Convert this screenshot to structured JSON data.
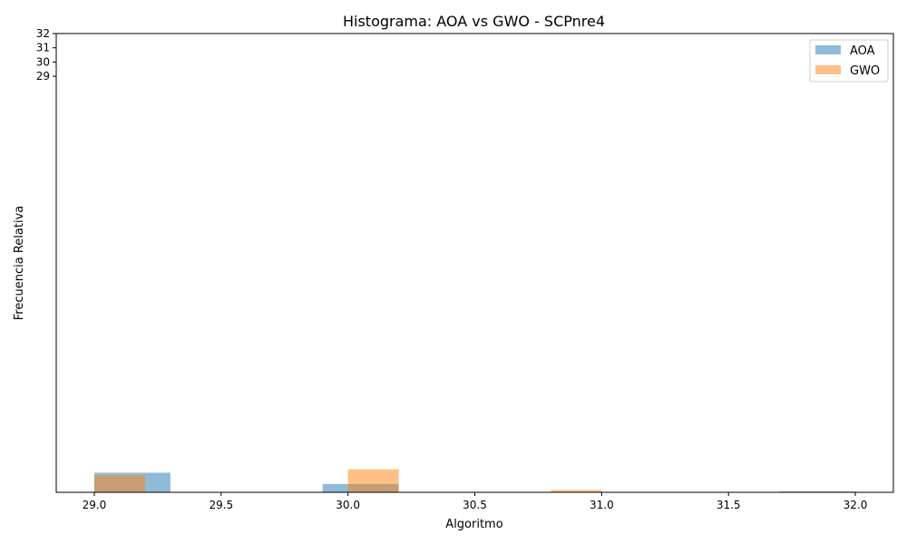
{
  "chart_data": {
    "type": "bar",
    "title": "Histograma: AOA vs GWO - SCPnre4",
    "xlabel": "Algoritmo",
    "ylabel": "Frecuencia Relativa",
    "xlim": [
      28.85,
      32.15
    ],
    "x_ticks": [
      "29.0",
      "29.5",
      "30.0",
      "30.5",
      "31.0",
      "31.5",
      "32.0"
    ],
    "y_ticks": [
      "29",
      "30",
      "31",
      "32"
    ],
    "legend_position": "top-right",
    "grid": false,
    "series": [
      {
        "name": "AOA",
        "color": "#1f77b4",
        "opacity": 0.5,
        "bins": [
          {
            "x0": 29.0,
            "x1": 29.3,
            "value": 2.43
          },
          {
            "x0": 29.9,
            "x1": 30.2,
            "value": 1.03
          },
          {
            "x0": 31.7,
            "x1": 32.0,
            "value": 0.06
          }
        ]
      },
      {
        "name": "GWO",
        "color": "#ff7f0e",
        "opacity": 0.5,
        "bins": [
          {
            "x0": 29.0,
            "x1": 29.2,
            "value": 2.14
          },
          {
            "x0": 30.0,
            "x1": 30.2,
            "value": 2.86
          },
          {
            "x0": 30.8,
            "x1": 31.0,
            "value": 0.29
          }
        ]
      }
    ]
  }
}
